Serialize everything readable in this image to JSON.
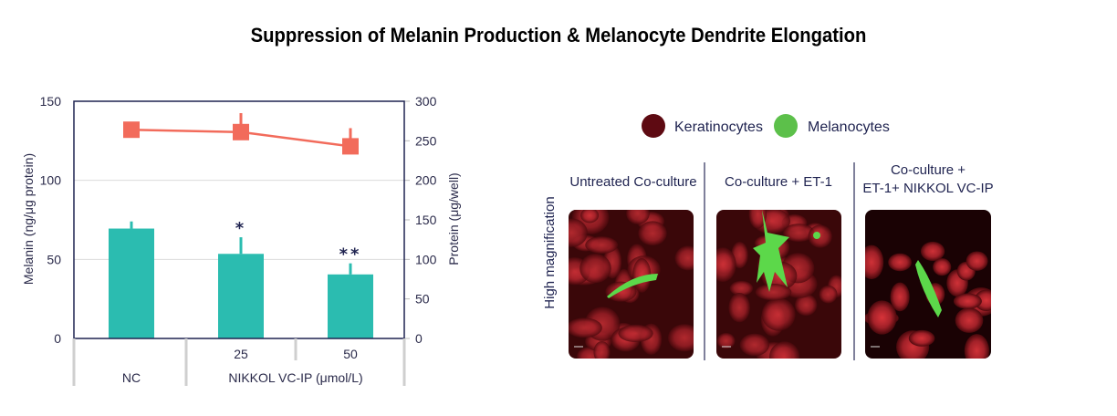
{
  "title": "Suppression of Melanin Production & Melanocyte Dendrite Elongation",
  "chart_data": {
    "type": "bar+line",
    "categories": [
      "NC",
      "25",
      "50"
    ],
    "group_label": "NIKKOL VC-IP (μmol/L)",
    "ylabel": "Melanin (ng/μg protein)",
    "y2label": "Protein (μg/well)",
    "ylim": [
      0,
      150
    ],
    "y2lim": [
      0,
      300
    ],
    "yticks": [
      0,
      50,
      100,
      150
    ],
    "y2ticks": [
      0,
      50,
      100,
      150,
      200,
      250,
      300
    ],
    "grid": true,
    "series": [
      {
        "type": "bar",
        "axis": "left",
        "values": [
          69.5,
          53.5,
          40.5
        ],
        "error_upper": [
          74,
          64,
          47.5
        ],
        "significance": [
          "",
          "*",
          "**"
        ],
        "color": "#2bbcb0"
      },
      {
        "type": "line",
        "axis": "right",
        "values": [
          264,
          261,
          243
        ],
        "error_upper": [
          264,
          285,
          266
        ],
        "color": "#f26b5b"
      }
    ]
  },
  "micrographs": {
    "legend": [
      {
        "label": "Keratinocytes",
        "color": "#5e0a12"
      },
      {
        "label": "Melanocytes",
        "color": "#5cc04a"
      }
    ],
    "row_label": "High magnification",
    "panels": [
      {
        "heading": [
          "Untreated Co-culture"
        ]
      },
      {
        "heading": [
          "Co-culture + ET-1"
        ]
      },
      {
        "heading": [
          "Co-culture +",
          "ET-1+ NIKKOL VC-IP"
        ]
      }
    ]
  }
}
